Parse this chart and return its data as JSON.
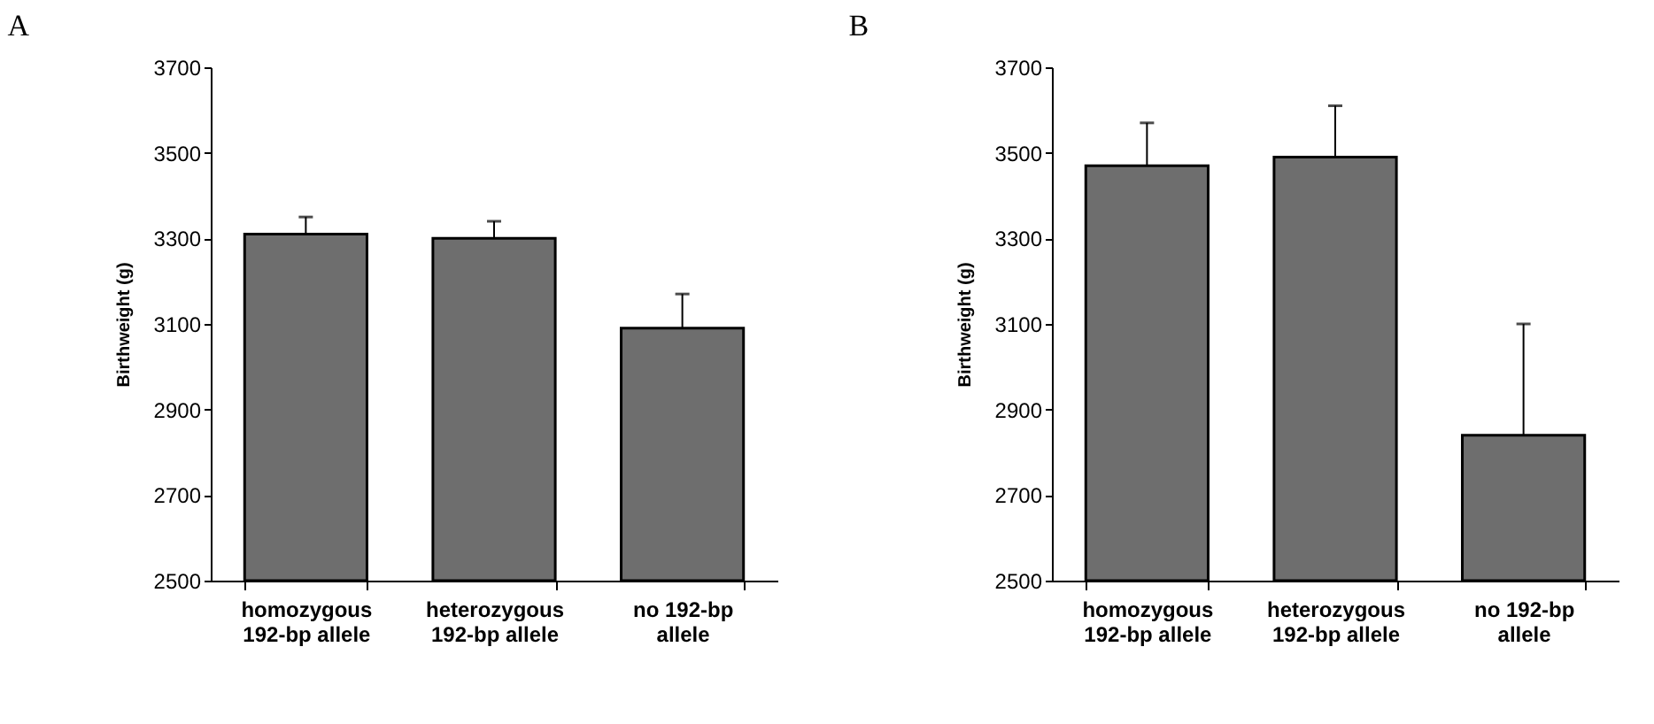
{
  "chart_data": [
    {
      "type": "bar",
      "title": "A",
      "ylabel": "Birthweight (g)",
      "categories": [
        "homozygous\n192-bp allele",
        "heterozygous\n192-bp allele",
        "no 192-bp\nallele"
      ],
      "values": [
        3310,
        3300,
        3090
      ],
      "errors": [
        [
          3310,
          3350
        ],
        [
          3300,
          3340
        ],
        [
          3090,
          3170
        ]
      ],
      "color": "#6e6e6e",
      "ylim": [
        2500,
        3700
      ],
      "yticks": [
        2500,
        2700,
        2900,
        3100,
        3300,
        3500,
        3700
      ],
      "grid": false
    },
    {
      "type": "bar",
      "title": "B",
      "ylabel": "Birthweight (g)",
      "categories": [
        "homozygous\n192-bp allele",
        "heterozygous\n192-bp allele",
        "no 192-bp\nallele"
      ],
      "values": [
        3470,
        3490,
        2840
      ],
      "errors": [
        [
          3470,
          3570
        ],
        [
          3490,
          3610
        ],
        [
          2840,
          3100
        ]
      ],
      "color": "#6e6e6e",
      "ylim": [
        2500,
        3700
      ],
      "yticks": [
        2500,
        2700,
        2900,
        3100,
        3300,
        3500,
        3700
      ],
      "grid": false
    }
  ]
}
